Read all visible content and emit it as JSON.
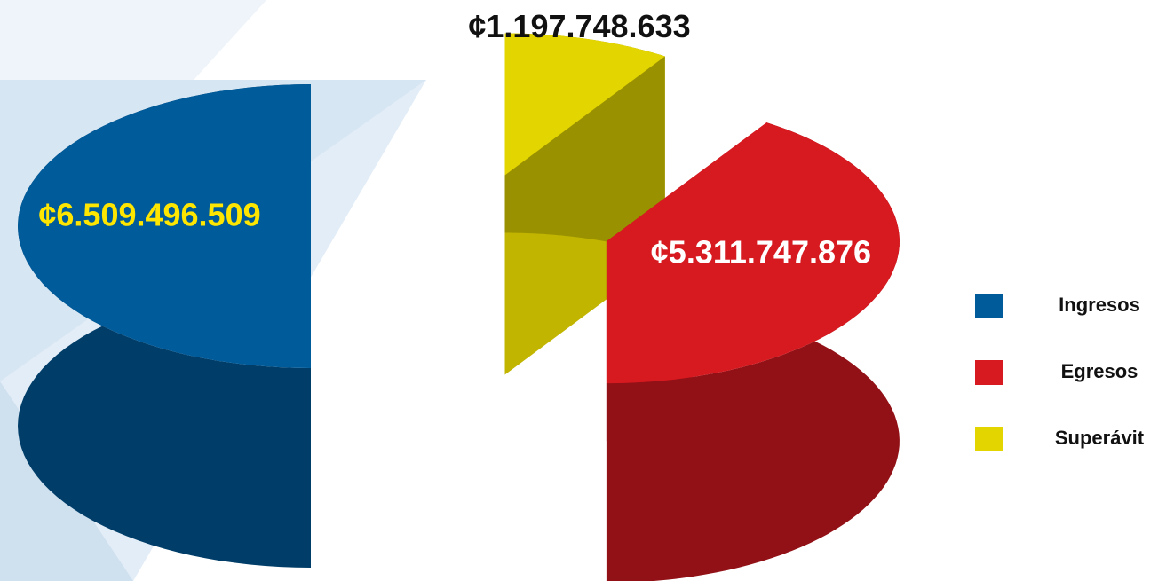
{
  "chart_data": {
    "type": "pie3d",
    "categories": [
      "Ingresos",
      "Egresos",
      "Superávit"
    ],
    "values": [
      6509496509,
      5311747876,
      1197748633
    ],
    "value_labels": [
      "¢6.509.496.509",
      "¢5.311.747.876",
      "¢1.197.748.633"
    ],
    "colors": [
      "#005b9a",
      "#d71920",
      "#e3d500"
    ],
    "label_colors": [
      "#ffe600",
      "#ffffff",
      "#111111"
    ],
    "legend": "right"
  }
}
